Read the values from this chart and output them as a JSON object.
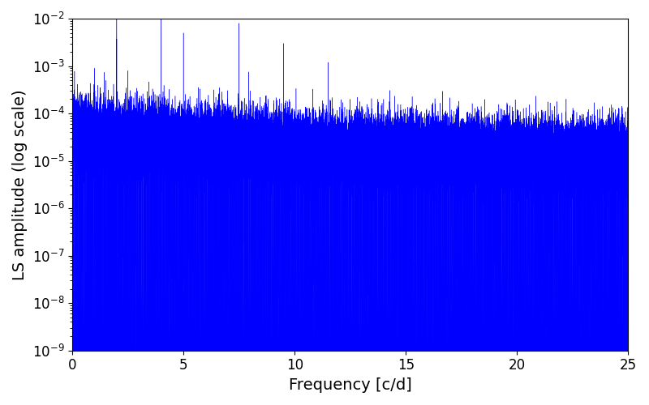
{
  "xlabel": "Frequency [c/d]",
  "ylabel": "LS amplitude (log scale)",
  "xlim": [
    0,
    25
  ],
  "ylim": [
    1e-09,
    0.01
  ],
  "line_color": "#0000ff",
  "background_color": "#ffffff",
  "figsize": [
    8.0,
    5.0
  ],
  "dpi": 100,
  "freq_max": 25.0,
  "n_points": 50000,
  "seed": 42,
  "peaks": [
    {
      "freq": 1.0,
      "amp": 0.0009
    },
    {
      "freq": 1.5,
      "amp": 0.0005
    },
    {
      "freq": 2.0,
      "amp": 0.025
    },
    {
      "freq": 2.5,
      "amp": 0.0008
    },
    {
      "freq": 3.0,
      "amp": 0.00015
    },
    {
      "freq": 3.5,
      "amp": 0.00015
    },
    {
      "freq": 4.0,
      "amp": 0.018
    },
    {
      "freq": 4.5,
      "amp": 0.0002
    },
    {
      "freq": 5.0,
      "amp": 0.005
    },
    {
      "freq": 6.0,
      "amp": 0.0002
    },
    {
      "freq": 7.5,
      "amp": 0.008
    },
    {
      "freq": 8.0,
      "amp": 0.0003
    },
    {
      "freq": 9.5,
      "amp": 0.003
    },
    {
      "freq": 10.0,
      "amp": 5e-05
    },
    {
      "freq": 11.5,
      "amp": 0.0012
    },
    {
      "freq": 12.5,
      "amp": 0.0002
    },
    {
      "freq": 14.0,
      "amp": 0.0002
    }
  ],
  "base_level": 1.2e-05,
  "null_depth_min": 1e-09,
  "null_depth_max": 1e-07,
  "n_nulls": 800,
  "tick_fontsize": 12,
  "label_fontsize": 14
}
